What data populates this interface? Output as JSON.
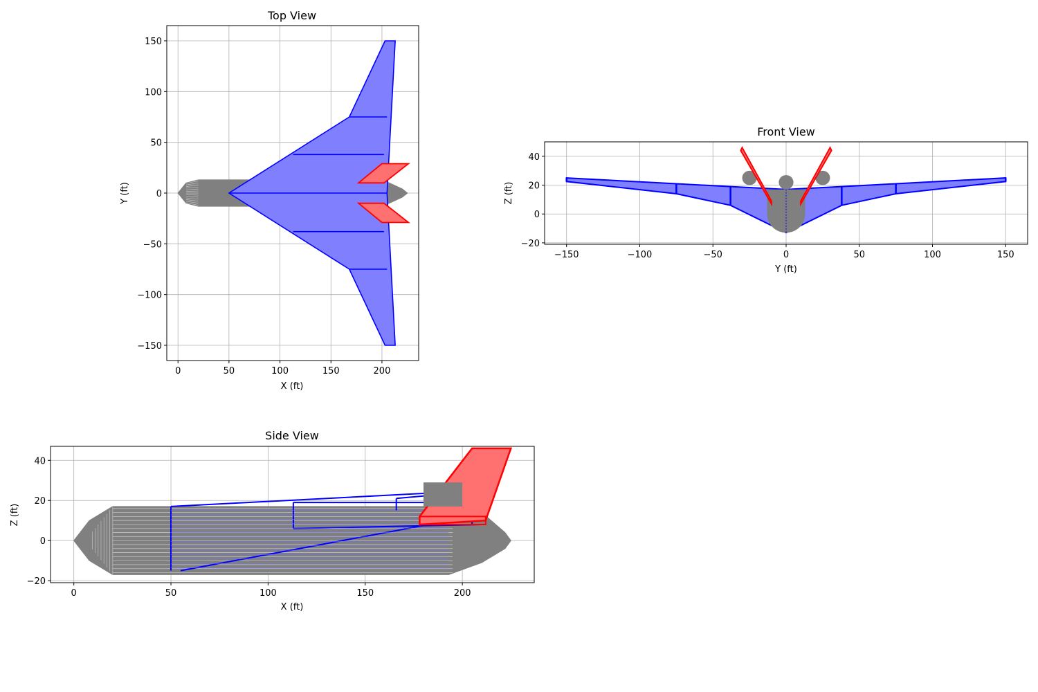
{
  "chart_data": [
    {
      "type": "line",
      "title": "Top View",
      "xlabel": "X (ft)",
      "ylabel": "Y (ft)",
      "xlim": [
        -11,
        236
      ],
      "ylim": [
        -165,
        165
      ],
      "xticks": [
        0,
        50,
        100,
        150,
        200
      ],
      "yticks": [
        -150,
        -100,
        -50,
        0,
        50,
        100,
        150
      ],
      "xtick_labels": [
        "0",
        "50",
        "100",
        "150",
        "200"
      ],
      "ytick_labels": [
        "−150",
        "−100",
        "−50",
        "0",
        "50",
        "100",
        "150"
      ],
      "grid": true,
      "colors": {
        "wing": "#0000ff",
        "wing_fill": "#8080ff",
        "tail": "#ff0000",
        "tail_fill": "#ff7070",
        "fuselage": "#808080",
        "fuselage_light": "#c0c0c0"
      },
      "wing_outline": [
        [
          50,
          0
        ],
        [
          168,
          75
        ],
        [
          203,
          150
        ],
        [
          213,
          150
        ],
        [
          205,
          0
        ],
        [
          213,
          -150
        ],
        [
          203,
          -150
        ],
        [
          168,
          -75
        ],
        [
          50,
          0
        ]
      ],
      "wing_stations": [
        [
          [
            113,
            38
          ],
          [
            202,
            38
          ]
        ],
        [
          [
            168,
            75
          ],
          [
            205,
            75
          ]
        ],
        [
          [
            113,
            -38
          ],
          [
            202,
            -38
          ]
        ],
        [
          [
            168,
            -75
          ],
          [
            205,
            -75
          ]
        ],
        [
          [
            50,
            0
          ],
          [
            205,
            0
          ]
        ]
      ],
      "tail_upper": [
        [
          177,
          10
        ],
        [
          200,
          29
        ],
        [
          226,
          29
        ],
        [
          202,
          10
        ],
        [
          177,
          10
        ]
      ],
      "tail_lower": [
        [
          177,
          -10
        ],
        [
          200,
          -29
        ],
        [
          226,
          -29
        ],
        [
          202,
          -10
        ],
        [
          177,
          -10
        ]
      ],
      "fuselage_outline": [
        [
          0,
          0
        ],
        [
          8,
          10
        ],
        [
          20,
          13
        ],
        [
          193,
          13
        ],
        [
          205,
          11
        ],
        [
          220,
          4
        ],
        [
          225,
          0
        ],
        [
          220,
          -4
        ],
        [
          205,
          -11
        ],
        [
          193,
          -13
        ],
        [
          20,
          -13
        ],
        [
          8,
          -10
        ],
        [
          0,
          0
        ]
      ],
      "nacelles": [
        [
          [
            178,
            20
          ],
          [
            199,
            30
          ]
        ],
        [
          [
            178,
            -30
          ],
          [
            199,
            -20
          ]
        ]
      ]
    },
    {
      "type": "line",
      "title": "Front View",
      "xlabel": "Y (ft)",
      "ylabel": "Z (ft)",
      "xlim": [
        -165,
        165
      ],
      "ylim": [
        -21,
        50
      ],
      "xticks": [
        -150,
        -100,
        -50,
        0,
        50,
        100,
        150
      ],
      "yticks": [
        -20,
        0,
        20,
        40
      ],
      "xtick_labels": [
        "−150",
        "−100",
        "−50",
        "0",
        "50",
        "100",
        "150"
      ],
      "ytick_labels": [
        "−20",
        "0",
        "20",
        "40"
      ],
      "grid": true,
      "wing_outline": [
        [
          -150,
          25
        ],
        [
          -75,
          21
        ],
        [
          -38,
          19
        ],
        [
          0,
          17
        ],
        [
          38,
          19
        ],
        [
          75,
          21
        ],
        [
          150,
          25
        ],
        [
          150,
          22.5
        ],
        [
          75,
          14
        ],
        [
          38,
          6
        ],
        [
          0,
          -13
        ],
        [
          -38,
          6
        ],
        [
          -75,
          14
        ],
        [
          -150,
          22.5
        ],
        [
          -150,
          25
        ]
      ],
      "wing_stations": [
        [
          -150,
          25,
          -150,
          22.5
        ],
        [
          -75,
          21,
          -75,
          14
        ],
        [
          -38,
          19,
          -38,
          6
        ],
        [
          38,
          19,
          38,
          6
        ],
        [
          75,
          21,
          75,
          14
        ],
        [
          150,
          25,
          150,
          22.5
        ]
      ],
      "tail_left": [
        [
          -30,
          46
        ],
        [
          -10,
          9
        ],
        [
          -10,
          7
        ],
        [
          -31,
          44
        ]
      ],
      "tail_right": [
        [
          30,
          46
        ],
        [
          10,
          9
        ],
        [
          10,
          7
        ],
        [
          31,
          44
        ]
      ],
      "engines": [
        [
          -25,
          25,
          5
        ],
        [
          0,
          22,
          5
        ],
        [
          25,
          25,
          5
        ]
      ],
      "fuselage_center": [
        0,
        0,
        13
      ]
    },
    {
      "type": "line",
      "title": "Side View",
      "xlabel": "X (ft)",
      "ylabel": "Z (ft)",
      "xlim": [
        -12,
        237
      ],
      "ylim": [
        -21,
        47
      ],
      "xticks": [
        0,
        50,
        100,
        150,
        200
      ],
      "yticks": [
        -20,
        0,
        20,
        40
      ],
      "xtick_labels": [
        "0",
        "50",
        "100",
        "150",
        "200"
      ],
      "ytick_labels": [
        "−20",
        "0",
        "20",
        "40"
      ],
      "grid": true,
      "fuselage_outline": [
        [
          0,
          0
        ],
        [
          8,
          10
        ],
        [
          20,
          17
        ],
        [
          200,
          17
        ],
        [
          210,
          14
        ],
        [
          222,
          4
        ],
        [
          225,
          0
        ],
        [
          222,
          -4
        ],
        [
          210,
          -11
        ],
        [
          193,
          -17
        ],
        [
          20,
          -17
        ],
        [
          8,
          -10
        ],
        [
          0,
          0
        ]
      ],
      "wing_lines": [
        [
          [
            50,
            17
          ],
          [
            210,
            25
          ]
        ],
        [
          [
            50,
            17
          ],
          [
            50,
            -15
          ]
        ],
        [
          [
            55,
            -15
          ],
          [
            205,
            12
          ]
        ],
        [
          [
            113,
            19
          ],
          [
            113,
            6
          ]
        ],
        [
          [
            113,
            19
          ],
          [
            212,
            19
          ]
        ],
        [
          [
            113,
            6
          ],
          [
            210,
            8
          ]
        ],
        [
          [
            166,
            21
          ],
          [
            166,
            15
          ]
        ],
        [
          [
            166,
            21
          ],
          [
            212,
            25
          ]
        ],
        [
          [
            212,
            25
          ],
          [
            212,
            19
          ]
        ],
        [
          [
            205,
            25
          ],
          [
            205,
            8
          ]
        ]
      ],
      "tail_outline": [
        [
          178,
          12
        ],
        [
          205,
          46
        ],
        [
          225,
          46
        ],
        [
          212,
          10
        ],
        [
          178,
          8
        ],
        [
          178,
          12
        ]
      ],
      "tail_root": [
        [
          178,
          8
        ],
        [
          212,
          8
        ],
        [
          212,
          12
        ],
        [
          178,
          12
        ]
      ],
      "engine_box": [
        [
          180,
          17
        ],
        [
          200,
          29
        ]
      ]
    }
  ]
}
